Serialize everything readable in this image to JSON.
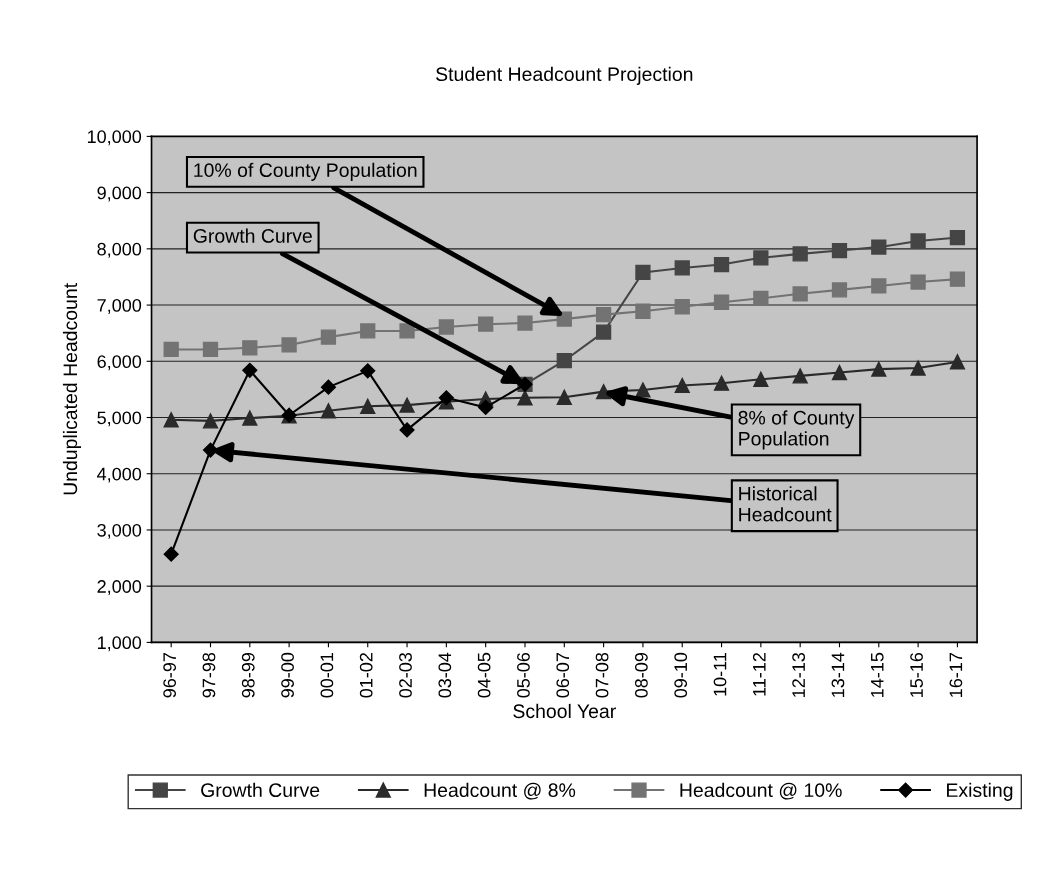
{
  "chart_data": {
    "type": "line",
    "title": "Student Headcount Projection",
    "xlabel": "School Year",
    "ylabel": "Unduplicated Headcount",
    "categories": [
      "96-97",
      "97-98",
      "98-99",
      "99-00",
      "00-01",
      "01-02",
      "02-03",
      "03-04",
      "04-05",
      "05-06",
      "06-07",
      "07-08",
      "08-09",
      "09-10",
      "10-11",
      "11-12",
      "12-13",
      "13-14",
      "14-15",
      "15-16",
      "16-17"
    ],
    "series": [
      {
        "name": "Growth Curve",
        "color": "#454545",
        "marker": "square",
        "values": [
          null,
          null,
          null,
          null,
          null,
          null,
          null,
          null,
          null,
          5590,
          6010,
          6520,
          7580,
          7660,
          7720,
          7840,
          7910,
          7970,
          8030,
          8140,
          8200
        ]
      },
      {
        "name": "Headcount @ 8%",
        "color": "#2a2a2a",
        "marker": "triangle",
        "values": [
          4960,
          4940,
          4990,
          5030,
          5120,
          5200,
          5220,
          5280,
          5330,
          5350,
          5360,
          5460,
          5490,
          5570,
          5610,
          5680,
          5740,
          5800,
          5860,
          5880,
          5990
        ]
      },
      {
        "name": "Headcount @ 10%",
        "color": "#737373",
        "marker": "square",
        "values": [
          6210,
          6210,
          6240,
          6290,
          6430,
          6540,
          6540,
          6610,
          6660,
          6680,
          6750,
          6830,
          6890,
          6970,
          7050,
          7120,
          7200,
          7270,
          7340,
          7410,
          7460
        ]
      },
      {
        "name": "Existing",
        "color": "#000000",
        "marker": "diamond",
        "values": [
          2570,
          4420,
          5840,
          5040,
          5540,
          5830,
          4780,
          5350,
          5180,
          5590,
          null,
          null,
          null,
          null,
          null,
          null,
          null,
          null,
          null,
          null,
          null
        ]
      }
    ],
    "ylim": [
      1000,
      10000
    ],
    "yticks": [
      {
        "value": 1000,
        "label": "1,000"
      },
      {
        "value": 2000,
        "label": "2,000"
      },
      {
        "value": 3000,
        "label": "3,000"
      },
      {
        "value": 4000,
        "label": "4,000"
      },
      {
        "value": 5000,
        "label": "5,000"
      },
      {
        "value": 6000,
        "label": "6,000"
      },
      {
        "value": 7000,
        "label": "7,000"
      },
      {
        "value": 8000,
        "label": "8,000"
      },
      {
        "value": 9000,
        "label": "9,000"
      },
      {
        "value": 10000,
        "label": "10,000"
      }
    ],
    "grid": "y",
    "legend": "bottom",
    "line_style": "solid",
    "annotations": [
      {
        "text": "10% of County Population",
        "x": "06-07",
        "y": 6800
      },
      {
        "text": "Growth Curve",
        "x": "05-06",
        "y": 5590
      },
      {
        "text": "8% of County\nPopulation",
        "x": "07-08",
        "y": 5450
      },
      {
        "text": "Historical\nHeadcount",
        "x": "97-98",
        "y": 4420
      }
    ]
  }
}
